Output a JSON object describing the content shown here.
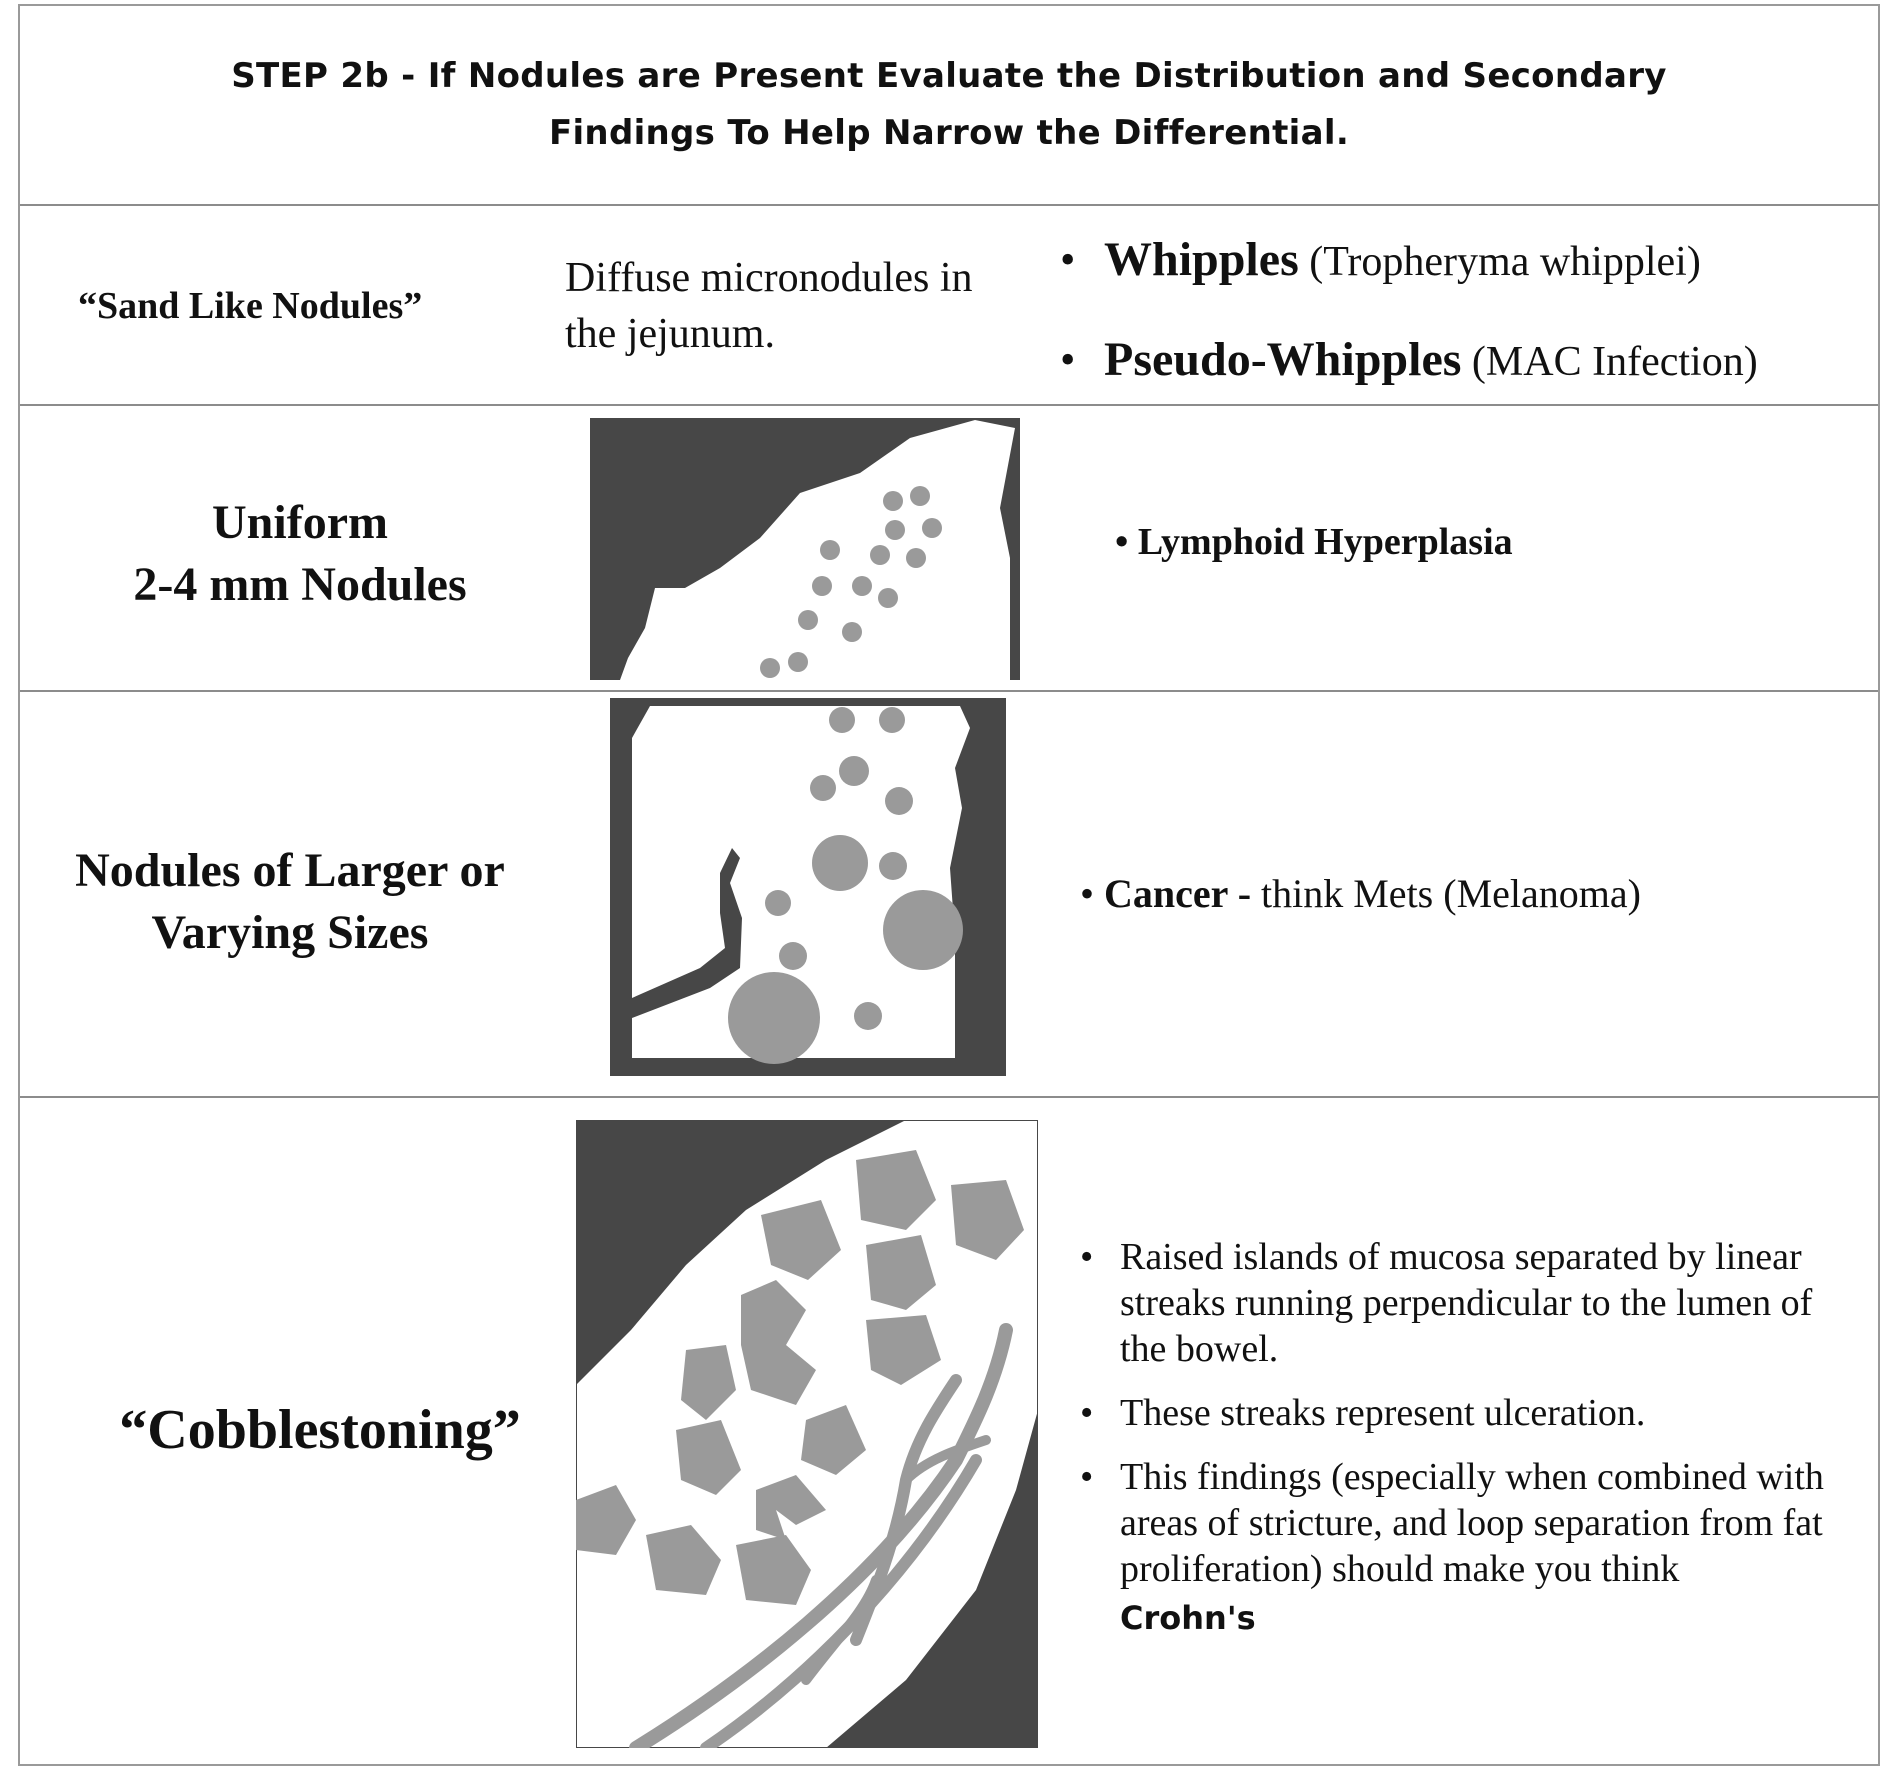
{
  "header": {
    "title_line1": "STEP 2b - If Nodules are Present Evaluate the Distribution and Secondary",
    "title_line2": "Findings To Help Narrow the Differential."
  },
  "rows": {
    "sand": {
      "label": "“Sand Like Nodules”",
      "description_line1": "Diffuse micronodules in",
      "description_line2": "the jejunum.",
      "items": [
        {
          "bold": "Whipples",
          "rest": " (Tropheryma whipplei)"
        },
        {
          "bold": "Pseudo-Whipples",
          "rest": " (MAC Infection)"
        }
      ]
    },
    "uniform": {
      "label_line1": "Uniform",
      "label_line2": "2-4 mm Nodules",
      "item": "Lymphoid Hyperplasia"
    },
    "varying": {
      "label_line1": "Nodules of Larger or",
      "label_line2": "Varying Sizes",
      "item_bold": "Cancer -",
      "item_rest": " think Mets (Melanoma)"
    },
    "cobble": {
      "label": "“Cobblestoning”",
      "items": [
        {
          "line1": "Raised islands of mucosa separated by linear",
          "line2": "streaks running perpendicular to the lumen of",
          "line3": "the bowel."
        },
        {
          "line1": "These streaks represent ulceration."
        },
        {
          "line1": "This findings (especially when combined with",
          "line2": "areas of stricture, and loop separation from fat",
          "line3": "proliferation) should make you think"
        }
      ],
      "conclusion": "Crohn's"
    }
  },
  "colors": {
    "dark": "#474747",
    "nodule": "#9a9a9a",
    "border": "#8c8c8c"
  },
  "icons": {
    "bullet": "•"
  }
}
